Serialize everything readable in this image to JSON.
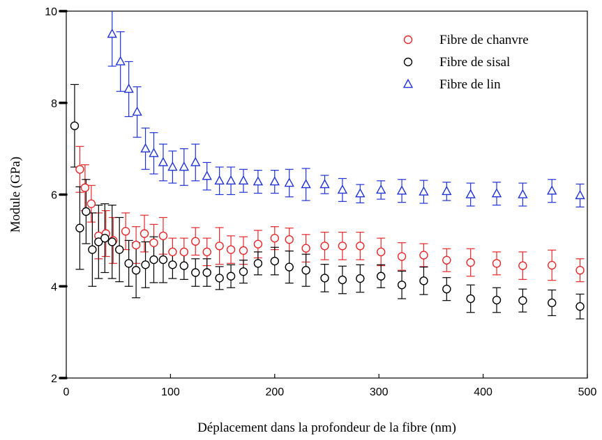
{
  "chart_data": {
    "type": "scatter",
    "title": "",
    "xlabel": "Déplacement dans la profondeur de la fibre (nm)",
    "ylabel": "Module (GPa)",
    "xlim": [
      0,
      500
    ],
    "ylim": [
      2,
      10
    ],
    "xticks": [
      "0",
      "100",
      "200",
      "300",
      "400",
      "500"
    ],
    "yticks": [
      "2",
      "4",
      "6",
      "8",
      "10"
    ],
    "grid": false,
    "legend_position": "top-right",
    "series": [
      {
        "name": "Fibre de chanvre",
        "marker": "circle",
        "color": "#e8272a",
        "x": [
          13,
          18,
          24,
          31,
          38,
          45,
          57,
          67,
          75,
          84,
          93,
          102,
          113,
          124,
          135,
          147,
          158,
          170,
          184,
          200,
          214,
          230,
          248,
          265,
          282,
          302,
          322,
          343,
          365,
          388,
          413,
          438,
          466,
          493
        ],
        "y": [
          6.55,
          6.15,
          5.8,
          5.1,
          5.15,
          5.0,
          5.2,
          4.9,
          5.15,
          4.95,
          5.1,
          4.75,
          4.75,
          4.98,
          4.75,
          4.88,
          4.8,
          4.78,
          4.92,
          5.05,
          5.02,
          4.83,
          4.88,
          4.88,
          4.88,
          4.75,
          4.65,
          4.68,
          4.57,
          4.52,
          4.5,
          4.45,
          4.46,
          4.35
        ],
        "error": [
          0.5,
          0.5,
          0.4,
          0.5,
          0.5,
          0.5,
          0.4,
          0.4,
          0.4,
          0.4,
          0.4,
          0.3,
          0.3,
          0.3,
          0.3,
          0.4,
          0.3,
          0.3,
          0.3,
          0.25,
          0.25,
          0.3,
          0.3,
          0.3,
          0.3,
          0.3,
          0.3,
          0.25,
          0.25,
          0.3,
          0.25,
          0.3,
          0.33,
          0.25
        ]
      },
      {
        "name": "Fibre de sisal",
        "marker": "circle",
        "color": "#000000",
        "x": [
          8,
          13,
          19,
          25,
          31,
          37,
          44,
          51,
          60,
          67,
          76,
          84,
          93,
          102,
          113,
          124,
          135,
          147,
          158,
          170,
          184,
          200,
          214,
          230,
          248,
          265,
          282,
          302,
          322,
          343,
          365,
          388,
          413,
          438,
          466,
          493
        ],
        "y": [
          7.5,
          5.27,
          5.63,
          4.8,
          4.97,
          5.05,
          4.97,
          4.8,
          4.5,
          4.35,
          4.47,
          4.58,
          4.58,
          4.47,
          4.45,
          4.3,
          4.3,
          4.18,
          4.22,
          4.32,
          4.5,
          4.55,
          4.42,
          4.35,
          4.18,
          4.14,
          4.17,
          4.22,
          4.03,
          4.12,
          3.94,
          3.73,
          3.7,
          3.69,
          3.64,
          3.56
        ],
        "error": [
          0.9,
          0.9,
          0.7,
          0.8,
          0.8,
          0.75,
          0.8,
          0.7,
          0.5,
          0.6,
          0.5,
          0.5,
          0.5,
          0.3,
          0.3,
          0.3,
          0.3,
          0.25,
          0.25,
          0.25,
          0.25,
          0.3,
          0.35,
          0.35,
          0.3,
          0.3,
          0.3,
          0.25,
          0.3,
          0.3,
          0.25,
          0.3,
          0.27,
          0.25,
          0.28,
          0.27
        ]
      },
      {
        "name": "Fibre de lin",
        "marker": "triangle",
        "color": "#1f32d8",
        "x": [
          44,
          52,
          60,
          68,
          76,
          84,
          93,
          102,
          113,
          124,
          135,
          147,
          158,
          170,
          184,
          200,
          214,
          230,
          248,
          265,
          282,
          302,
          322,
          343,
          365,
          388,
          413,
          438,
          466,
          493
        ],
        "y": [
          9.5,
          8.9,
          8.3,
          7.8,
          7.0,
          6.9,
          6.7,
          6.6,
          6.6,
          6.7,
          6.4,
          6.3,
          6.3,
          6.3,
          6.28,
          6.28,
          6.25,
          6.22,
          6.22,
          6.1,
          6.02,
          6.1,
          6.08,
          6.06,
          6.07,
          6.0,
          6.02,
          6.0,
          6.08,
          5.98
        ],
        "error": [
          0.7,
          0.65,
          0.6,
          0.55,
          0.45,
          0.45,
          0.4,
          0.35,
          0.4,
          0.4,
          0.3,
          0.3,
          0.3,
          0.25,
          0.25,
          0.25,
          0.3,
          0.35,
          0.2,
          0.25,
          0.2,
          0.2,
          0.25,
          0.25,
          0.2,
          0.25,
          0.25,
          0.25,
          0.25,
          0.25
        ]
      }
    ]
  }
}
